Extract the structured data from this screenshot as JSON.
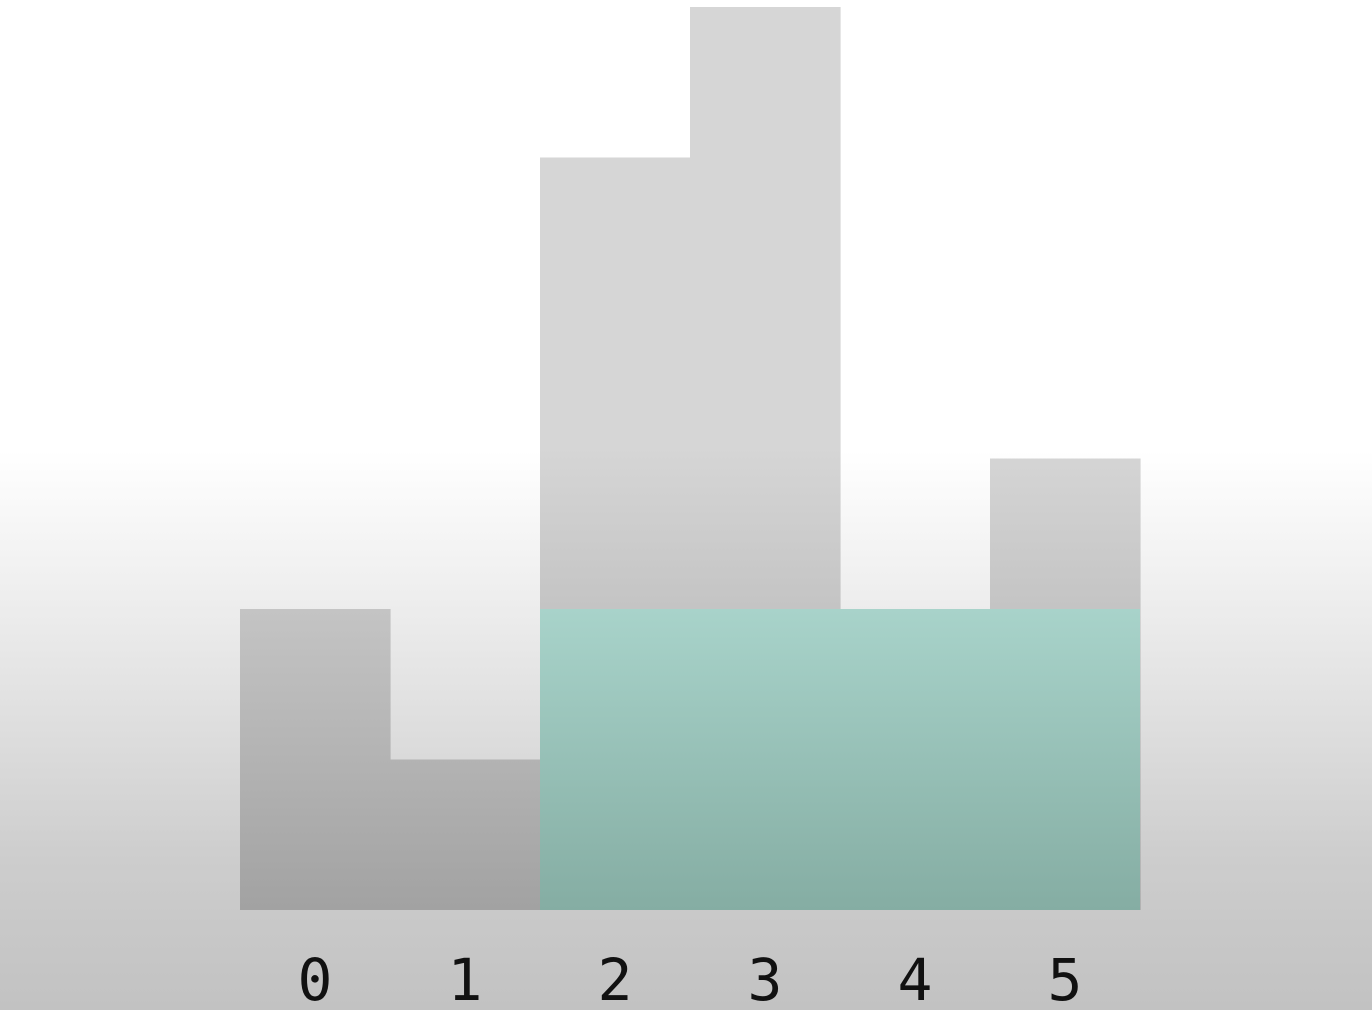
{
  "chart_data": {
    "type": "bar",
    "categories": [
      "0",
      "1",
      "2",
      "3",
      "4",
      "5"
    ],
    "values": [
      2,
      1,
      5,
      6,
      0,
      3
    ],
    "highlight": {
      "label": "max-area-rectangle",
      "from_index": 2,
      "to_index": 5,
      "height": 2
    },
    "ylim": [
      0,
      6
    ],
    "grid": false,
    "legend": "none",
    "title": "",
    "xlabel": "",
    "ylabel": ""
  },
  "colors": {
    "bar_top": "#d7d7d7",
    "bar_bottom": "#a3a3a3",
    "highlight_top": "#a8d3ca",
    "highlight_bottom": "#86aea4",
    "label": "#111111"
  }
}
